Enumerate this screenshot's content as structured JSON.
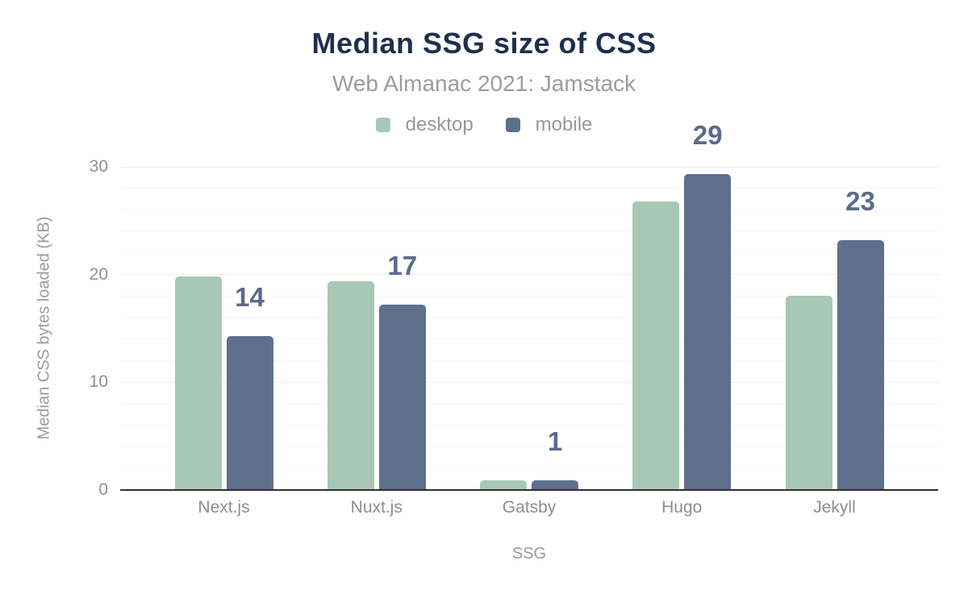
{
  "chart_data": {
    "type": "bar",
    "title": "Median SSG size of CSS",
    "subtitle": "Web Almanac 2021: Jamstack",
    "xlabel": "SSG",
    "ylabel": "Median CSS bytes loaded (KB)",
    "categories": [
      "Next.js",
      "Nuxt.js",
      "Gatsby",
      "Hugo",
      "Jekyll"
    ],
    "series": [
      {
        "name": "desktop",
        "color": "#a8c8b5",
        "values": [
          19.8,
          19.4,
          0.9,
          26.8,
          18.0
        ],
        "data_labels": [
          "",
          "",
          "",
          "",
          ""
        ]
      },
      {
        "name": "mobile",
        "color": "#5e708e",
        "values": [
          14.3,
          17.2,
          0.9,
          29.3,
          23.2
        ],
        "data_labels": [
          "14",
          "17",
          "1",
          "29",
          "23"
        ]
      }
    ],
    "ylim": [
      0,
      30
    ],
    "yticks": [
      0,
      10,
      20,
      30
    ],
    "minor_gridline_step": 2,
    "grid": true,
    "legend_position": "top"
  },
  "colors": {
    "background": "#ffffff",
    "title": "#1e3050",
    "subtitle": "#9b9ba1",
    "legend_text": "#97979c",
    "tick_label": "#8d9095",
    "category_label": "#8a8e95",
    "axis_title": "#9a9aa0",
    "data_label": "#5a6b8c",
    "baseline": "#2f2f2f",
    "major_grid": "#ededef",
    "minor_grid": "#f7f7f9"
  }
}
